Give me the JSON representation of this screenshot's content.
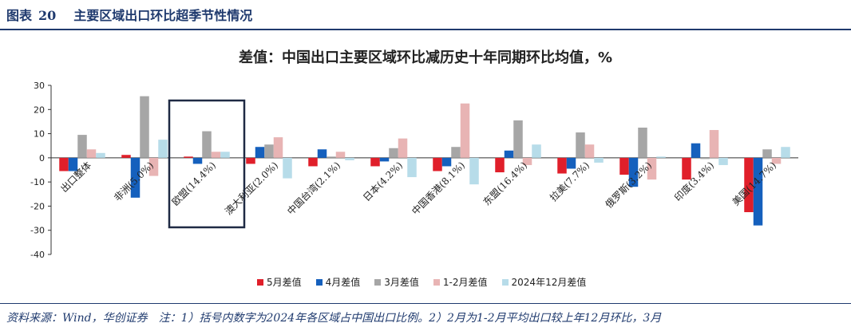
{
  "header": {
    "label": "图表",
    "number": "20",
    "title": "主要区域出口环比超季节性情况"
  },
  "chart_data": {
    "type": "bar",
    "title": "差值：中国出口主要区域环比减历史十年同期环比均值，%",
    "xlabel": "",
    "ylabel": "",
    "ylim": [
      -40,
      30
    ],
    "yticks": [
      30,
      20,
      10,
      0,
      -10,
      -20,
      -30,
      -40
    ],
    "grid": false,
    "legend_position": "bottom",
    "categories": [
      "出口整体",
      "非洲(5.0%)",
      "欧盟(14.4%)",
      "澳大利亚(2.0%)",
      "中国台湾(2.1%)",
      "日本(4.2%)",
      "中国香港(8.1%)",
      "东盟(16.4%)",
      "拉美(7.7%)",
      "俄罗斯(3.2%)",
      "印度(3.4%)",
      "美国(14.7%)"
    ],
    "highlight_category": "欧盟(14.4%)",
    "series": [
      {
        "name": "5月差值",
        "color": "#e01f2a",
        "values": [
          -5.5,
          1.2,
          0.5,
          -2.5,
          -3.5,
          -3.5,
          -5.5,
          -6.0,
          -6.5,
          -7.0,
          -9.0,
          -22.5
        ]
      },
      {
        "name": "4月差值",
        "color": "#1560bd",
        "values": [
          -5.5,
          -16.5,
          -2.5,
          4.5,
          3.5,
          -1.5,
          -3.5,
          3.0,
          -4.5,
          -12.0,
          6.0,
          -28.0
        ]
      },
      {
        "name": "3月差值",
        "color": "#a6a6a6",
        "values": [
          9.5,
          25.5,
          11.0,
          5.5,
          0.5,
          4.0,
          4.5,
          15.5,
          10.5,
          12.5,
          -0.5,
          3.5
        ]
      },
      {
        "name": "1-2月差值",
        "color": "#e8b4b4",
        "values": [
          3.5,
          -7.5,
          2.5,
          8.5,
          2.5,
          8.0,
          22.5,
          -3.0,
          5.5,
          -9.0,
          11.5,
          -2.5
        ]
      },
      {
        "name": "2024年12月差值",
        "color": "#b7dce9",
        "values": [
          2.0,
          7.5,
          2.5,
          -8.5,
          -1.0,
          -8.0,
          -11.0,
          5.5,
          -2.0,
          0.5,
          -3.0,
          4.5
        ]
      }
    ]
  },
  "footer": {
    "source": "资料来源：Wind，华创证券",
    "note": "注：1）括号内数字为2024年各区域占中国出口比例。2）2月为1-2月平均出口较上年12月环比，3月"
  }
}
